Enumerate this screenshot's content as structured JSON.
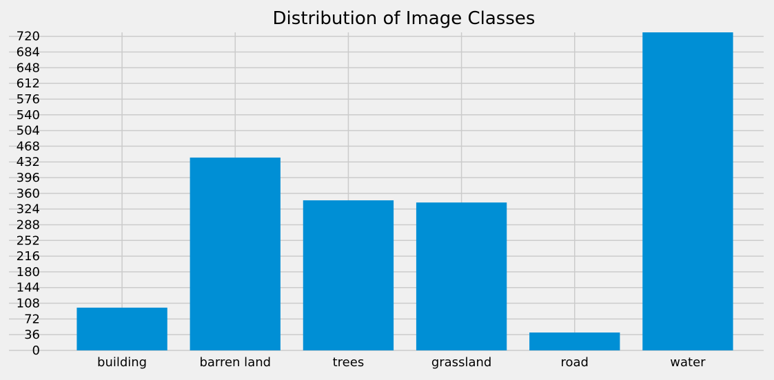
{
  "chart_data": {
    "type": "bar",
    "title": "Distribution of Image Classes",
    "xlabel": "",
    "ylabel": "",
    "categories": [
      "building",
      "barren land",
      "trees",
      "grassland",
      "road",
      "water"
    ],
    "values": [
      98,
      442,
      344,
      339,
      41,
      729
    ],
    "ylim": [
      0,
      729
    ],
    "yticks": [
      0,
      36,
      72,
      108,
      144,
      180,
      216,
      252,
      288,
      324,
      360,
      396,
      432,
      468,
      504,
      540,
      576,
      612,
      648,
      684,
      720
    ],
    "bar_color": "#008fd5",
    "background_color": "#f0f0f0",
    "grid": true,
    "legend": "none"
  }
}
